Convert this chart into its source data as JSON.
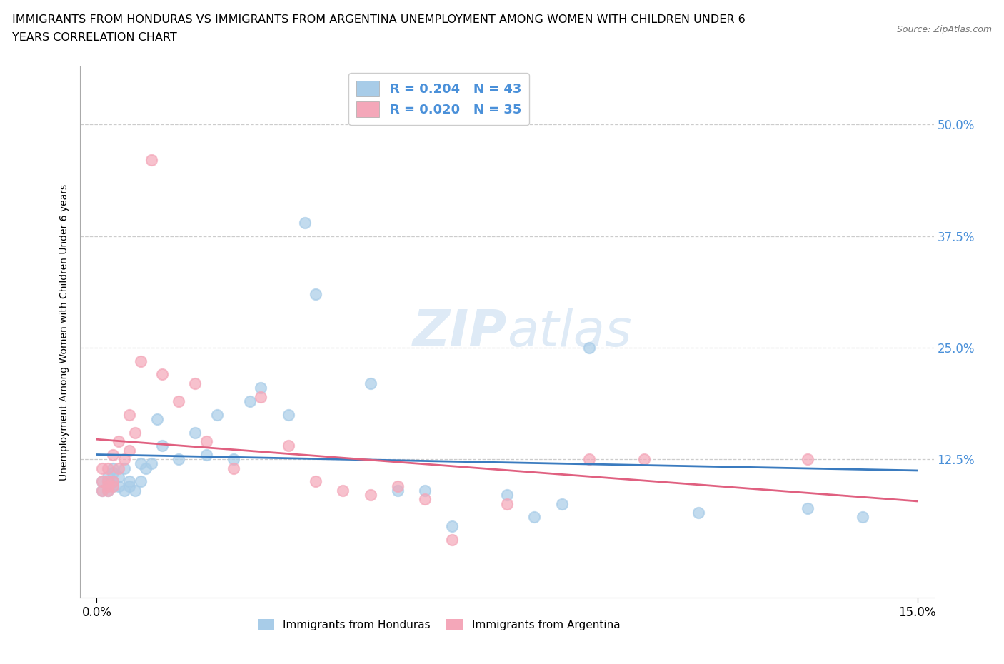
{
  "title_line1": "IMMIGRANTS FROM HONDURAS VS IMMIGRANTS FROM ARGENTINA UNEMPLOYMENT AMONG WOMEN WITH CHILDREN UNDER 6",
  "title_line2": "YEARS CORRELATION CHART",
  "source": "Source: ZipAtlas.com",
  "xlabel_label": "Immigrants from Honduras",
  "xlabel_label2": "Immigrants from Argentina",
  "ylabel_label": "Unemployment Among Women with Children Under 6 years",
  "R_honduras": 0.204,
  "N_honduras": 43,
  "R_argentina": 0.02,
  "N_argentina": 35,
  "color_honduras": "#a8cce8",
  "color_argentina": "#f4a7b9",
  "line_color_honduras": "#3a7bbf",
  "line_color_argentina": "#e06080",
  "blue_text": "#4a90d9",
  "ytick_positions": [
    0.125,
    0.25,
    0.375,
    0.5
  ],
  "ytick_labels": [
    "12.5%",
    "25.0%",
    "37.5%",
    "50.0%"
  ],
  "honduras_x": [
    0.001,
    0.001,
    0.002,
    0.002,
    0.002,
    0.003,
    0.003,
    0.003,
    0.003,
    0.004,
    0.004,
    0.005,
    0.005,
    0.006,
    0.006,
    0.007,
    0.008,
    0.008,
    0.009,
    0.01,
    0.011,
    0.012,
    0.015,
    0.018,
    0.02,
    0.022,
    0.025,
    0.028,
    0.03,
    0.035,
    0.038,
    0.04,
    0.05,
    0.055,
    0.06,
    0.065,
    0.075,
    0.08,
    0.085,
    0.09,
    0.11,
    0.13,
    0.14
  ],
  "honduras_y": [
    0.09,
    0.1,
    0.09,
    0.1,
    0.105,
    0.095,
    0.1,
    0.115,
    0.11,
    0.095,
    0.105,
    0.09,
    0.115,
    0.1,
    0.095,
    0.09,
    0.12,
    0.1,
    0.115,
    0.12,
    0.17,
    0.14,
    0.125,
    0.155,
    0.13,
    0.175,
    0.125,
    0.19,
    0.205,
    0.175,
    0.39,
    0.31,
    0.21,
    0.09,
    0.09,
    0.05,
    0.085,
    0.06,
    0.075,
    0.25,
    0.065,
    0.07,
    0.06
  ],
  "argentina_x": [
    0.001,
    0.001,
    0.001,
    0.002,
    0.002,
    0.002,
    0.002,
    0.003,
    0.003,
    0.003,
    0.004,
    0.004,
    0.005,
    0.006,
    0.006,
    0.007,
    0.008,
    0.01,
    0.012,
    0.015,
    0.018,
    0.02,
    0.025,
    0.03,
    0.035,
    0.04,
    0.045,
    0.05,
    0.055,
    0.06,
    0.065,
    0.075,
    0.09,
    0.1,
    0.13
  ],
  "argentina_y": [
    0.09,
    0.1,
    0.115,
    0.095,
    0.1,
    0.115,
    0.09,
    0.13,
    0.1,
    0.095,
    0.145,
    0.115,
    0.125,
    0.135,
    0.175,
    0.155,
    0.235,
    0.46,
    0.22,
    0.19,
    0.21,
    0.145,
    0.115,
    0.195,
    0.14,
    0.1,
    0.09,
    0.085,
    0.095,
    0.08,
    0.035,
    0.075,
    0.125,
    0.125,
    0.125
  ]
}
